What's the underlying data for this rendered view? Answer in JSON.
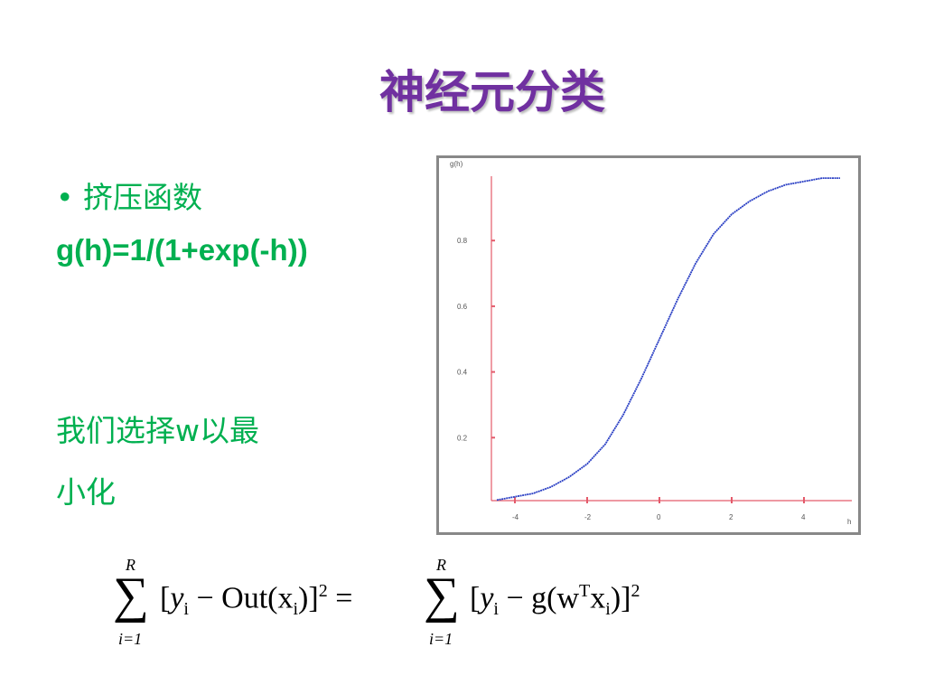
{
  "title": "神经元分类",
  "bullet": {
    "marker": "•",
    "text": "挤压函数"
  },
  "formula": "g(h)=1/(1+exp(-h))",
  "note": [
    "我们选择w以最",
    "小化"
  ],
  "chart_data": {
    "type": "line",
    "x_label": "h",
    "y_label": "g(h)",
    "x": [
      -4.5,
      -4,
      -3.5,
      -3,
      -2.5,
      -2,
      -1.5,
      -1,
      -0.5,
      0,
      0.5,
      1,
      1.5,
      2,
      2.5,
      3,
      3.5,
      4,
      4.5,
      5
    ],
    "series": [
      {
        "name": "g(h)",
        "color": "#2a3fc4",
        "values": [
          0.01,
          0.02,
          0.03,
          0.05,
          0.08,
          0.12,
          0.18,
          0.27,
          0.38,
          0.5,
          0.62,
          0.73,
          0.82,
          0.88,
          0.92,
          0.95,
          0.97,
          0.98,
          0.99,
          0.99
        ]
      }
    ],
    "xlim": [
      -4.7,
      5.3
    ],
    "ylim": [
      0,
      1.0
    ],
    "xticks": [
      -4,
      -2,
      0,
      2,
      4
    ],
    "yticks": [
      0.2,
      0.4,
      0.6,
      0.8
    ]
  },
  "equation": {
    "sum": "∑",
    "upper": "R",
    "lower": "i=1",
    "parts": [
      "[",
      "y",
      "i",
      " − Out(x",
      "i",
      ")]",
      "2",
      " = ",
      "[",
      "y",
      "i",
      " − g(w",
      "T",
      "x",
      "i",
      ")]",
      "2"
    ]
  }
}
